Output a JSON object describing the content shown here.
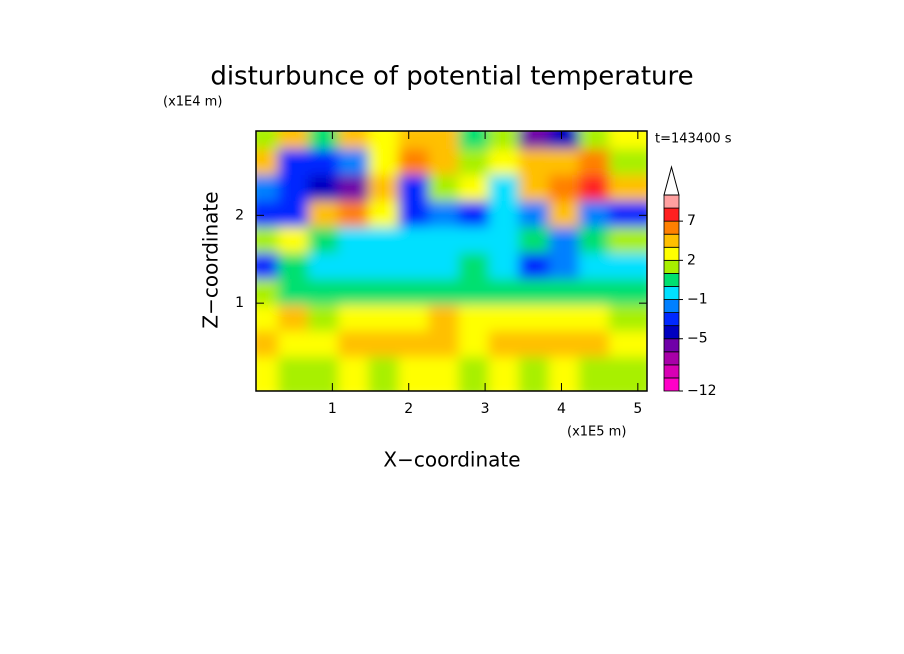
{
  "chart_data": {
    "type": "contour",
    "title": "disturbunce of potential temperature",
    "x_label": "X−coordinate",
    "y_label": "Z−coordinate",
    "x_unit": "(x1E5 m)",
    "y_unit": "(x1E4 m)",
    "annotation": "t=143400 s",
    "xlim": [
      0,
      5.12
    ],
    "ylim": [
      0,
      2.96
    ],
    "xticks": [
      1,
      2,
      3,
      4,
      5
    ],
    "yticks": [
      1,
      2
    ],
    "levels": [
      -12,
      -10,
      -8,
      -6,
      -5,
      -4,
      -2,
      -1,
      0,
      1,
      2,
      3,
      5,
      7,
      9,
      11
    ],
    "colors": [
      "#ff00c8",
      "#d800b4",
      "#a800a8",
      "#7000a8",
      "#0000c0",
      "#0028ff",
      "#0080ff",
      "#00e0ff",
      "#00e070",
      "#a8f000",
      "#ffff00",
      "#ffc000",
      "#ff8000",
      "#ff2020",
      "#ffa0a0"
    ],
    "colorbar_ticks": [
      {
        "value": -12,
        "label": "−12"
      },
      {
        "value": -5,
        "label": "−5"
      },
      {
        "value": -1,
        "label": "−1"
      },
      2,
      7
    ],
    "z": [
      [
        1,
        3,
        0,
        3,
        2,
        4,
        3,
        0,
        1,
        -6,
        -5,
        1,
        2
      ],
      [
        3,
        -3,
        -4,
        -2,
        2,
        5,
        4,
        1,
        2,
        3,
        4,
        5,
        1
      ],
      [
        -2,
        -3,
        -5,
        -6,
        3,
        -4,
        1,
        2,
        -1,
        3,
        5,
        7,
        3
      ],
      [
        -4,
        -3,
        3,
        6,
        2,
        -4,
        -2,
        -3,
        -1,
        -2,
        3,
        -2,
        -4
      ],
      [
        1,
        2,
        0,
        -1,
        -1,
        -1,
        -1,
        -1,
        -1,
        0,
        -2,
        0,
        1
      ],
      [
        -3,
        0,
        -1,
        -1,
        -1,
        -1,
        -1,
        0,
        -1,
        -3,
        -2,
        -1,
        -1
      ],
      [
        1,
        0,
        0,
        0,
        0,
        0,
        0,
        0,
        0,
        0,
        0,
        0,
        0
      ],
      [
        2,
        3,
        1,
        2,
        2,
        2,
        3,
        2,
        2,
        2,
        2,
        2,
        1
      ],
      [
        3,
        2,
        2,
        3,
        3,
        3,
        3,
        2,
        3,
        3,
        3,
        3,
        2
      ],
      [
        2,
        1,
        1,
        2,
        1,
        2,
        2,
        1,
        2,
        1,
        2,
        1,
        1
      ]
    ]
  }
}
